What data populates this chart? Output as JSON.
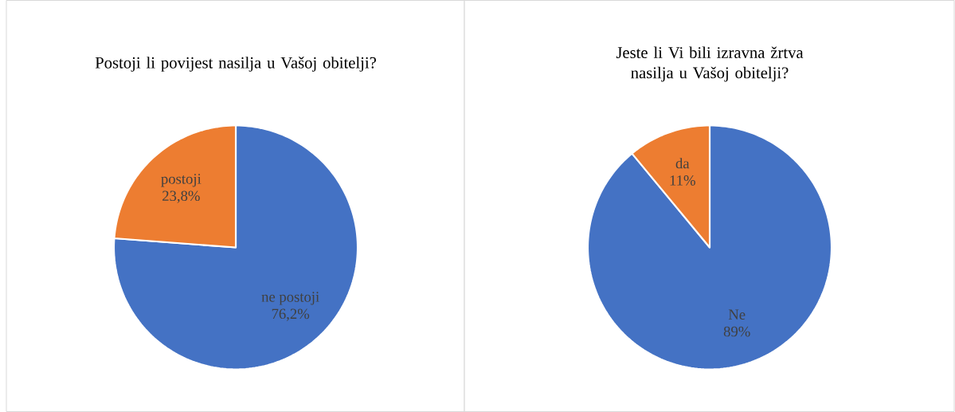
{
  "chart_data": [
    {
      "type": "pie",
      "title": "Postoji li povijest nasilja u Vašoj obitelji?",
      "categories": [
        "ne postoji",
        "postoji"
      ],
      "values": [
        76.2,
        23.8
      ],
      "colors": [
        "#4472c4",
        "#ed7d31"
      ],
      "value_labels": [
        "76,2%",
        "23,8%"
      ]
    },
    {
      "type": "pie",
      "title": "Jeste li Vi bili izravna žrtva nasilja u Vašoj obitelji?",
      "categories": [
        "Ne",
        "da"
      ],
      "values": [
        89,
        11
      ],
      "colors": [
        "#4472c4",
        "#ed7d31"
      ],
      "value_labels": [
        "89%",
        "11%"
      ]
    }
  ]
}
